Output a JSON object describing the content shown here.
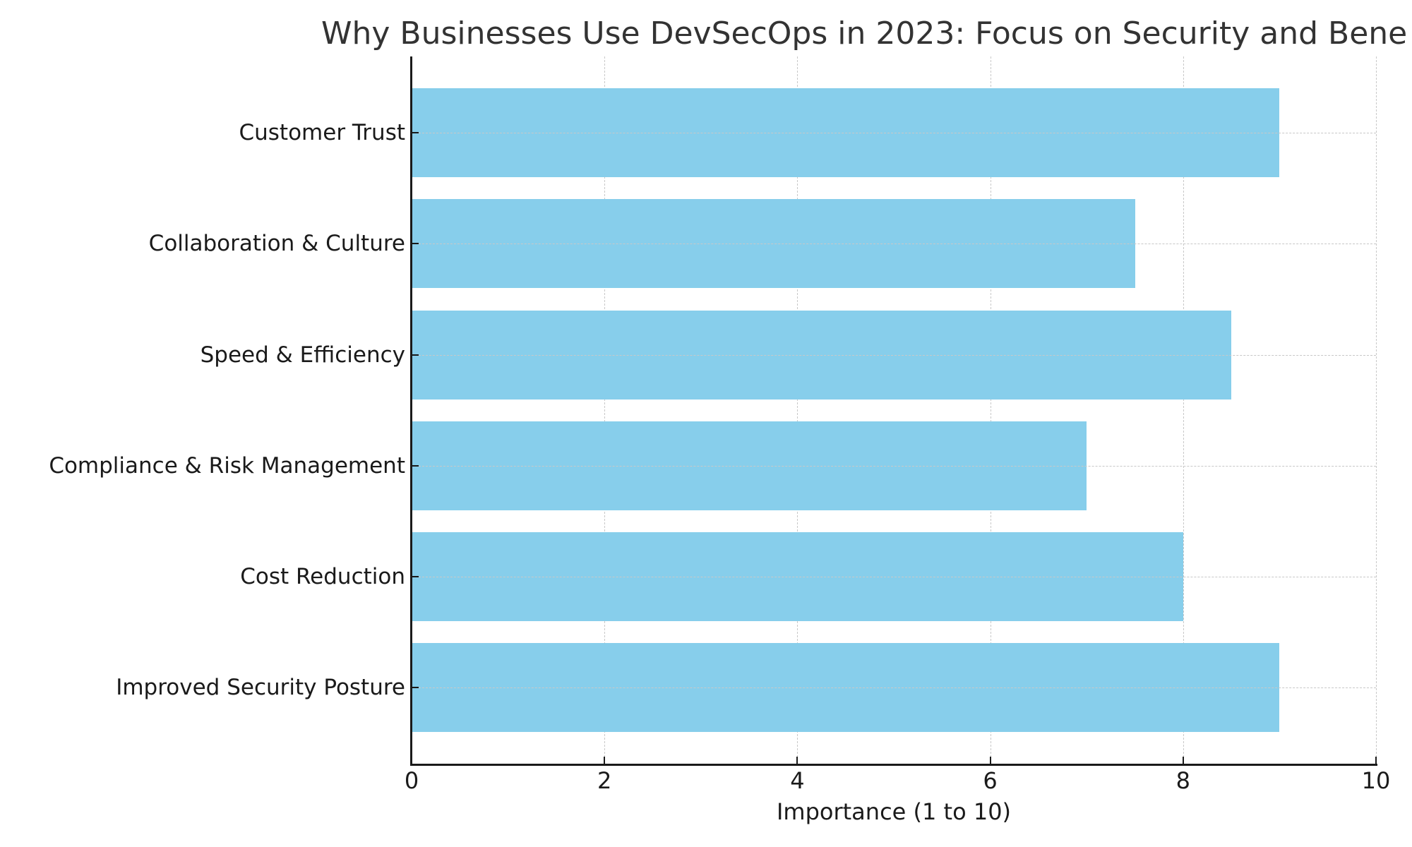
{
  "chart_data": {
    "type": "bar",
    "orientation": "horizontal",
    "title": "Why Businesses Use DevSecOps in 2023: Focus on Security and Bene",
    "xlabel": "Importance (1 to 10)",
    "ylabel": "",
    "categories": [
      "Improved Security Posture",
      "Cost Reduction",
      "Compliance & Risk Management",
      "Speed & Efficiency",
      "Collaboration & Culture",
      "Customer Trust"
    ],
    "values": [
      9,
      8,
      7,
      8.5,
      7.5,
      9
    ],
    "xlim": [
      0,
      10
    ],
    "xticks": [
      "0",
      "2",
      "4",
      "6",
      "8",
      "10"
    ],
    "grid": true,
    "grid_style": "dashed",
    "legend": null,
    "bar_color": "#87CEEB"
  },
  "colors": {
    "bar": "#87CEEB",
    "grid": "#c8c8c8",
    "axis": "#1a1a1a",
    "title": "#333333"
  }
}
